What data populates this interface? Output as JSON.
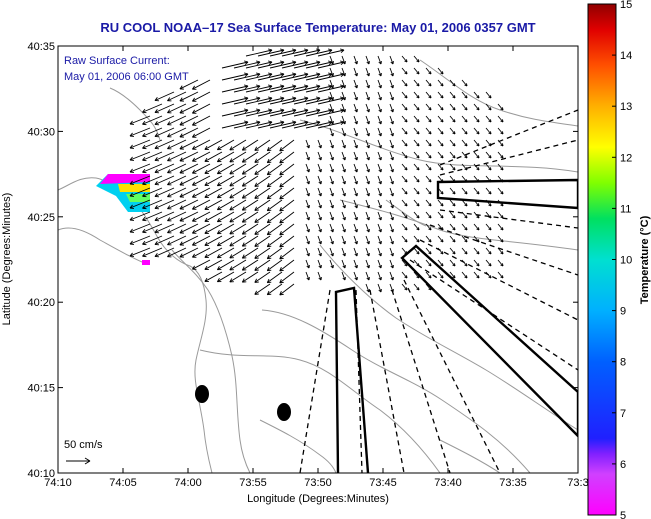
{
  "title": "RU COOL  NOAA–17  Sea Surface Temperature:  May 01, 2006 0357 GMT",
  "inset": {
    "line1": "Raw Surface Current:",
    "line2": "May 01, 2006 06:00 GMT"
  },
  "scale_label": "50 cm/s",
  "xlabel": "Longitude (Degrees:Minutes)",
  "ylabel": "Latitude (Degrees:Minutes)",
  "colorbar": {
    "label": "Temperature (°C)",
    "min": 5,
    "max": 15,
    "ticks": [
      "5",
      "6",
      "7",
      "8",
      "9",
      "10",
      "11",
      "12",
      "13",
      "14",
      "15"
    ]
  },
  "chart_data": {
    "type": "map",
    "x_ticks": [
      "74:10",
      "74:05",
      "74:00",
      "73:55",
      "73:50",
      "73:45",
      "73:40",
      "73:35",
      "73:3"
    ],
    "y_ticks": [
      "40:35",
      "40:30",
      "40:25",
      "40:20",
      "40:15",
      "40:10"
    ],
    "xlim": [
      "74:10",
      "73:30"
    ],
    "ylim": [
      "40:10",
      "40:35"
    ],
    "grid": false
  },
  "colors": {
    "title": "#1a1aa6",
    "contour": "#9a9a9a",
    "vector": "#000000"
  }
}
